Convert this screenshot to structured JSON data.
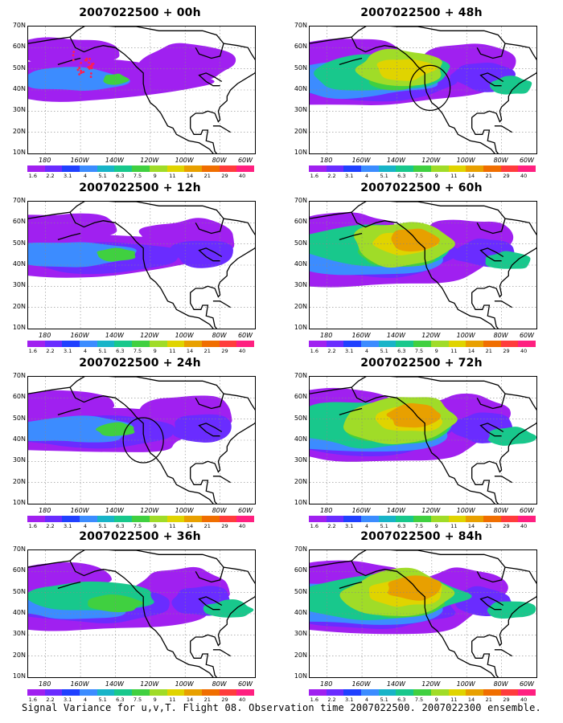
{
  "caption": "Signal Variance for u,v,T. Flight 08. Observation time 2007022500. 2007022300 ensemble.",
  "lat_labels": [
    "70N",
    "60N",
    "50N",
    "40N",
    "30N",
    "20N",
    "10N"
  ],
  "lon_labels": [
    "180",
    "160W",
    "140W",
    "120W",
    "100W",
    "80W",
    "60W"
  ],
  "colorbar": {
    "colors": [
      "#a020f0",
      "#6a2cff",
      "#2040ff",
      "#3c8cff",
      "#18b4c8",
      "#18c88c",
      "#40d040",
      "#a0dc28",
      "#e0d400",
      "#e8a000",
      "#f06e00",
      "#ff3c3c",
      "#ff2080"
    ],
    "labels": [
      "1.6",
      "2.2",
      "3.1",
      "4",
      "5.1",
      "6.3",
      "7.5",
      "9",
      "11",
      "14",
      "21",
      "29",
      "40"
    ]
  },
  "panels": [
    {
      "title": "2007022500 + 00h",
      "level": 0,
      "observation_points": true
    },
    {
      "title": "2007022500 + 48h",
      "level": 3,
      "circle": {
        "lon": -121,
        "lat": 41
      }
    },
    {
      "title": "2007022500 + 12h",
      "level": 1
    },
    {
      "title": "2007022500 + 60h",
      "level": 4
    },
    {
      "title": "2007022500 + 24h",
      "level": 1,
      "circle": {
        "lon": -124,
        "lat": 40
      }
    },
    {
      "title": "2007022500 + 72h",
      "level": 5
    },
    {
      "title": "2007022500 + 36h",
      "level": 2
    },
    {
      "title": "2007022500 + 84h",
      "level": 5
    }
  ]
}
